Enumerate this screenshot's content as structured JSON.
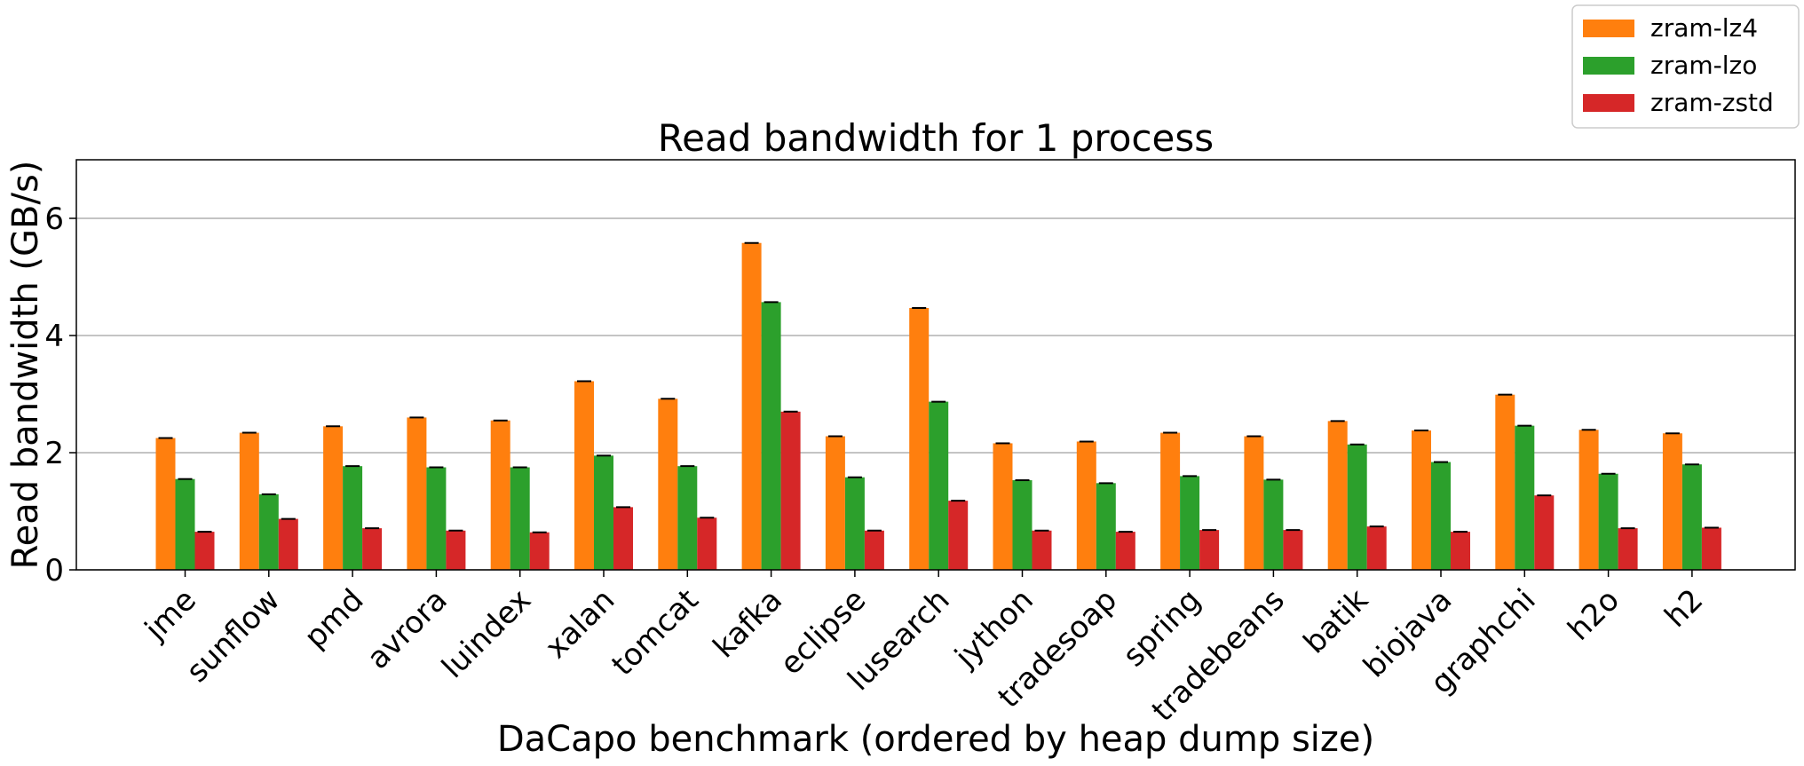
{
  "chart_data": {
    "type": "bar",
    "title": "Read bandwidth for 1 process",
    "xlabel": "DaCapo benchmark (ordered by heap dump size)",
    "ylabel": "Read bandwidth (GB/s)",
    "ylim": [
      0,
      7
    ],
    "yticks": [
      0,
      2,
      4,
      6
    ],
    "grid": "y",
    "legend_position": "top-right",
    "categories": [
      "jme",
      "sunflow",
      "pmd",
      "avrora",
      "luindex",
      "xalan",
      "tomcat",
      "kafka",
      "eclipse",
      "lusearch",
      "jython",
      "tradesoap",
      "spring",
      "tradebeans",
      "batik",
      "biojava",
      "graphchi",
      "h2o",
      "h2"
    ],
    "series": [
      {
        "name": "zram-lz4",
        "color": "#ff7f0e",
        "values": [
          2.25,
          2.34,
          2.45,
          2.6,
          2.55,
          3.22,
          2.92,
          5.58,
          2.28,
          4.47,
          2.16,
          2.19,
          2.34,
          2.28,
          2.54,
          2.38,
          2.99,
          2.39,
          2.33
        ]
      },
      {
        "name": "zram-lzo",
        "color": "#2ca02c",
        "values": [
          1.55,
          1.29,
          1.77,
          1.75,
          1.75,
          1.95,
          1.77,
          4.57,
          1.58,
          2.87,
          1.53,
          1.48,
          1.6,
          1.54,
          2.14,
          1.84,
          2.46,
          1.64,
          1.8
        ]
      },
      {
        "name": "zram-zstd",
        "color": "#d62728",
        "values": [
          0.65,
          0.87,
          0.71,
          0.67,
          0.64,
          1.07,
          0.89,
          2.7,
          0.67,
          1.18,
          0.67,
          0.65,
          0.68,
          0.68,
          0.74,
          0.65,
          1.27,
          0.71,
          0.72
        ]
      }
    ]
  }
}
